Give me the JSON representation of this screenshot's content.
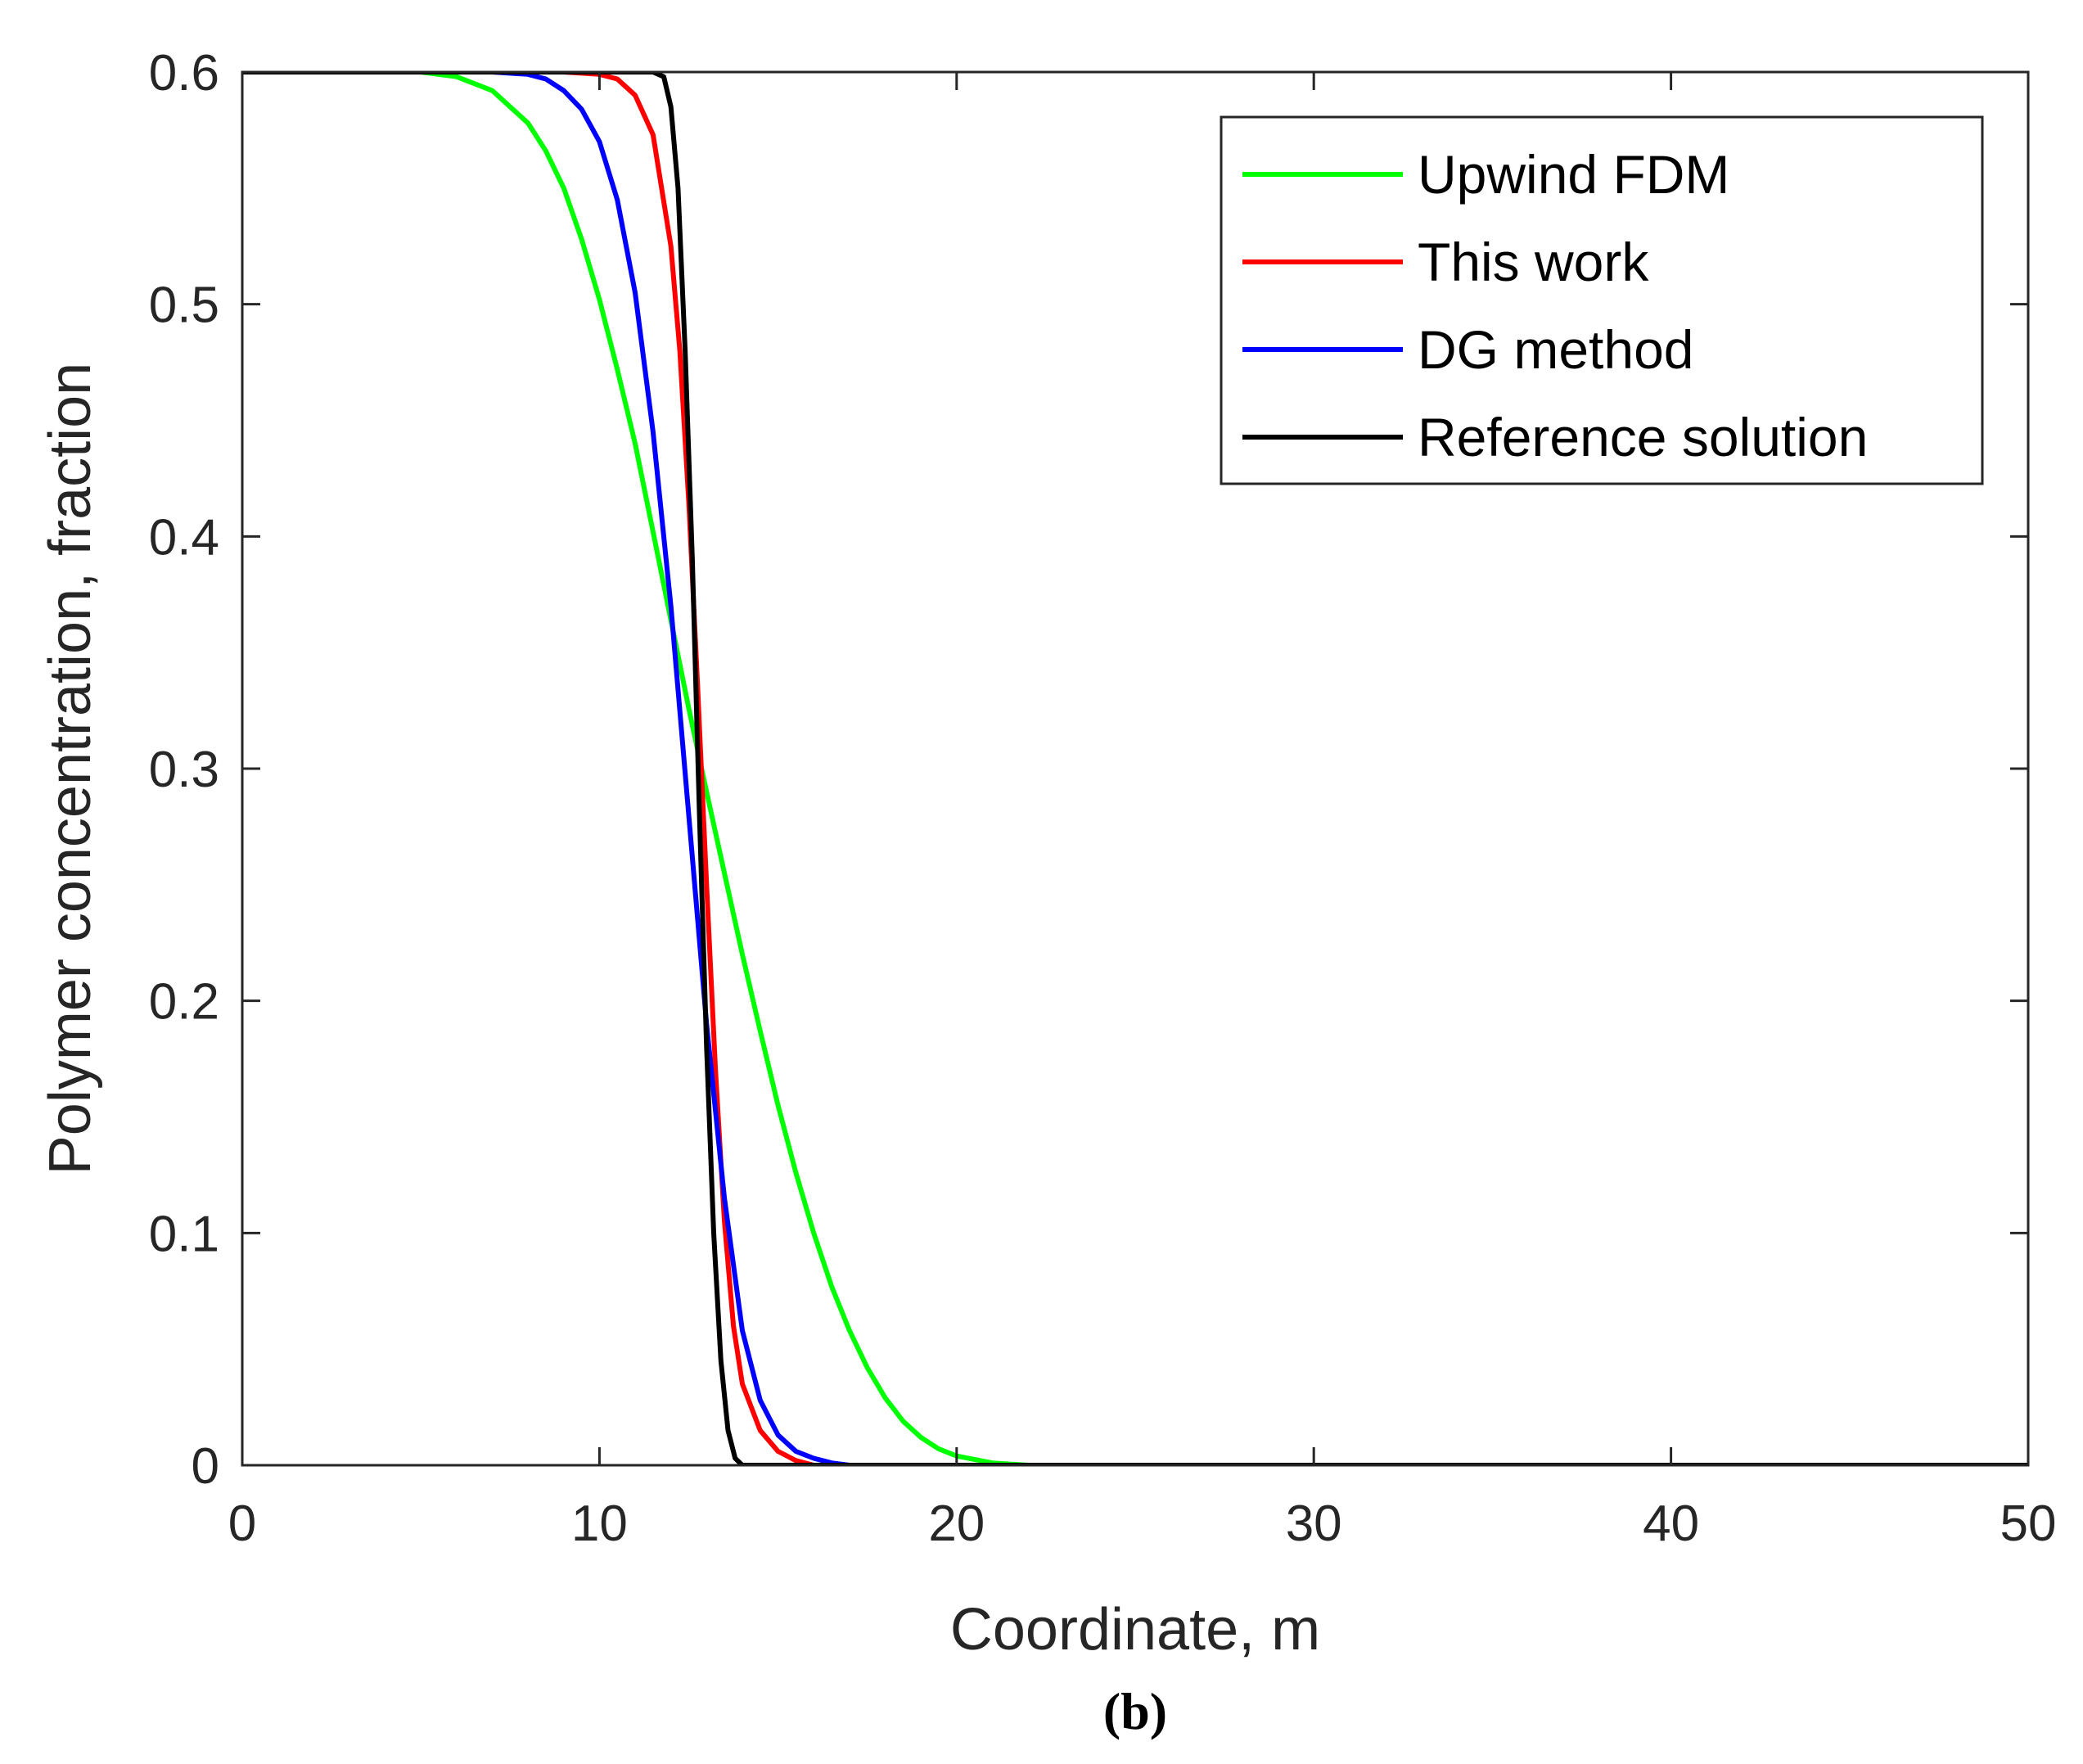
{
  "chart_data": {
    "type": "line",
    "caption": "(b)",
    "xlabel": "Coordinate, m",
    "ylabel": "Polymer concentration, fraction",
    "xlim": [
      0,
      50
    ],
    "ylim": [
      0,
      0.6
    ],
    "xticks": [
      0,
      10,
      20,
      30,
      40,
      50
    ],
    "xtick_labels": [
      "0",
      "10",
      "20",
      "30",
      "40",
      "50"
    ],
    "yticks": [
      0,
      0.1,
      0.2,
      0.3,
      0.4,
      0.5,
      0.6
    ],
    "ytick_labels": [
      "0",
      "0.1",
      "0.2",
      "0.3",
      "0.4",
      "0.5",
      "0.6"
    ],
    "grid": false,
    "legend_position": "top-right",
    "series": [
      {
        "name": "Upwind FDM",
        "color": "#00ff00",
        "x": [
          0,
          5,
          6,
          7,
          8,
          8.5,
          9,
          9.5,
          10,
          10.5,
          11,
          11.5,
          12,
          12.5,
          13,
          13.5,
          14,
          14.5,
          15,
          15.5,
          16,
          16.5,
          17,
          17.5,
          18,
          18.5,
          19,
          19.5,
          20,
          21,
          22,
          50
        ],
        "y": [
          0.6,
          0.6,
          0.598,
          0.592,
          0.578,
          0.566,
          0.55,
          0.528,
          0.502,
          0.472,
          0.44,
          0.402,
          0.364,
          0.326,
          0.29,
          0.255,
          0.22,
          0.187,
          0.155,
          0.126,
          0.1,
          0.077,
          0.058,
          0.042,
          0.029,
          0.019,
          0.012,
          0.007,
          0.004,
          0.001,
          0.0,
          0.0
        ]
      },
      {
        "name": "This work",
        "color": "#ff0000",
        "x": [
          0,
          9,
          10,
          10.5,
          11,
          11.5,
          12,
          12.25,
          12.5,
          12.75,
          13,
          13.25,
          13.5,
          13.75,
          14,
          14.5,
          15,
          15.5,
          16,
          50
        ],
        "y": [
          0.6,
          0.6,
          0.599,
          0.597,
          0.59,
          0.573,
          0.525,
          0.48,
          0.415,
          0.335,
          0.25,
          0.17,
          0.105,
          0.06,
          0.035,
          0.015,
          0.006,
          0.002,
          0.0,
          0.0
        ]
      },
      {
        "name": "DG method",
        "color": "#0000ff",
        "x": [
          0,
          7,
          8,
          8.5,
          9,
          9.5,
          10,
          10.5,
          11,
          11.5,
          12,
          12.5,
          13,
          13.5,
          14,
          14.5,
          15,
          15.5,
          16,
          16.5,
          17,
          18,
          50
        ],
        "y": [
          0.6,
          0.6,
          0.599,
          0.597,
          0.592,
          0.584,
          0.57,
          0.545,
          0.505,
          0.445,
          0.37,
          0.28,
          0.19,
          0.115,
          0.058,
          0.028,
          0.013,
          0.006,
          0.003,
          0.001,
          0.0,
          0.0,
          0.0
        ]
      },
      {
        "name": "Reference solution",
        "color": "#000000",
        "x": [
          0,
          11,
          11.5,
          11.8,
          12,
          12.2,
          12.4,
          12.6,
          12.8,
          13,
          13.2,
          13.4,
          13.6,
          13.8,
          14,
          50
        ],
        "y": [
          0.6,
          0.6,
          0.6,
          0.598,
          0.585,
          0.55,
          0.48,
          0.39,
          0.28,
          0.18,
          0.1,
          0.045,
          0.015,
          0.003,
          0.0,
          0.0
        ]
      }
    ]
  }
}
